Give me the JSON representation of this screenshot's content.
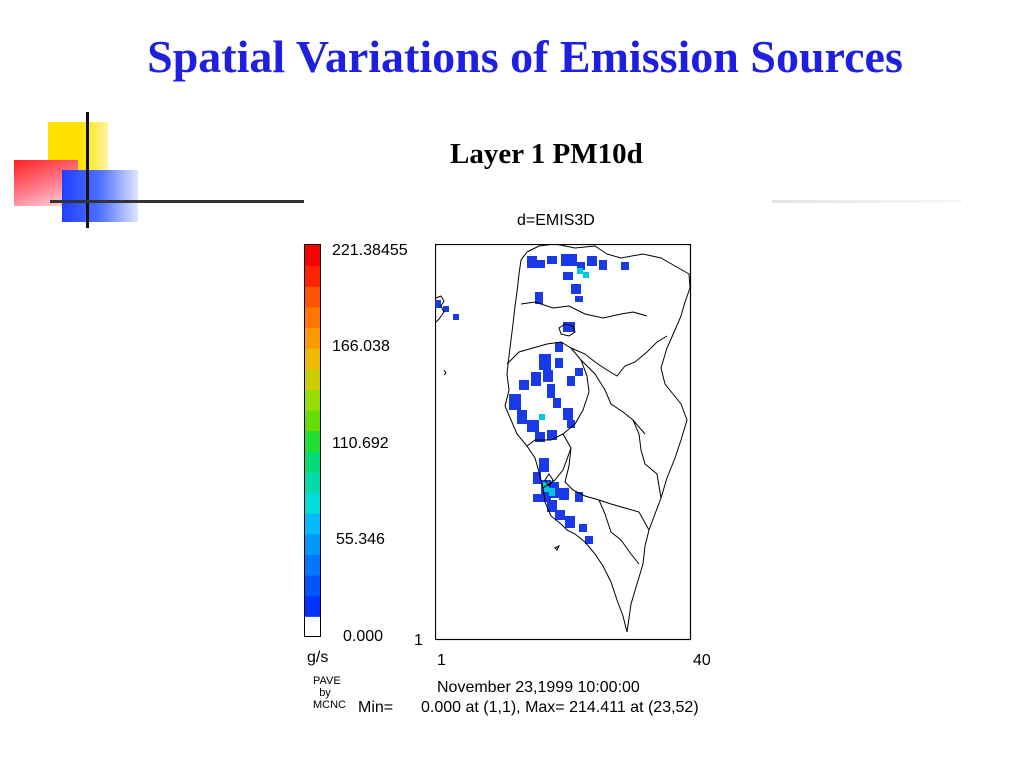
{
  "slide": {
    "title": "Spatial Variations of Emission Sources"
  },
  "plot": {
    "layer_title": "Layer 1  PM10d",
    "subtitle": "d=EMIS3D",
    "colorbar_labels": [
      "221.38455",
      "166.038",
      "110.692",
      "55.346",
      "0.000"
    ],
    "units": "g/s",
    "x_axis_min": "1",
    "x_axis_max": "40",
    "y_axis_min": "1",
    "credit": [
      "PAVE",
      "by",
      "MCNC"
    ],
    "date": "November 23,1999 10:00:00",
    "min_label": "Min=",
    "minmax_text": "0.000 at (1,1), Max= 214.411 at (23,52)",
    "colors": {
      "ramp": [
        "#ffffff",
        "#0033ff",
        "#0055ff",
        "#0077ff",
        "#0099ff",
        "#00bbff",
        "#00dddd",
        "#00ddaa",
        "#00dd77",
        "#22dd33",
        "#66dd00",
        "#99dd00",
        "#cccc00",
        "#eebb00",
        "#ff9900",
        "#ff7700",
        "#ff5500",
        "#ff2200",
        "#ff0000"
      ],
      "emission_low": "#1a3ae8",
      "emission_high": "#00c8e0",
      "title": "#1f1fe0"
    }
  }
}
